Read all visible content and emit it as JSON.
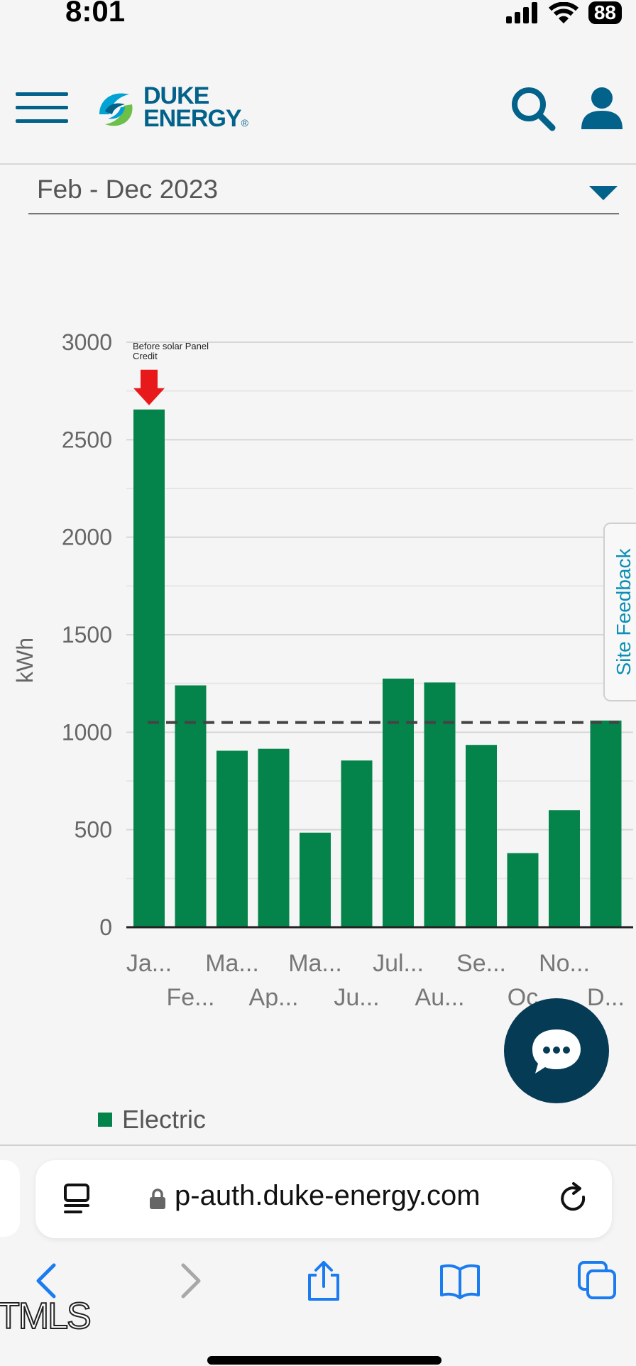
{
  "status_bar": {
    "time": "8:01",
    "battery": "88"
  },
  "header": {
    "logo_line1": "DUKE",
    "logo_line2": "ENERGY",
    "logo_mark": "®"
  },
  "date_select": {
    "value": "Feb - Dec 2023"
  },
  "chart_data": {
    "type": "bar",
    "ylabel": "kWh",
    "ylim": [
      0,
      3000
    ],
    "y_ticks": [
      0,
      500,
      1000,
      1500,
      2000,
      2500,
      3000
    ],
    "categories": [
      "Ja...",
      "Fe...",
      "Ma...",
      "Ap...",
      "Ma...",
      "Ju...",
      "Jul...",
      "Au...",
      "Se...",
      "Oc",
      "No...",
      "D..."
    ],
    "series": [
      {
        "name": "Electric",
        "values": [
          2655,
          1240,
          905,
          915,
          485,
          855,
          1275,
          1255,
          935,
          380,
          600,
          1060
        ]
      }
    ],
    "average_line": 1050,
    "annotation": {
      "line1": "Before solar Panel",
      "line2": "Credit"
    },
    "colors": {
      "bar": "#04834b",
      "arrow": "#e8191b",
      "average": "#444444"
    },
    "grid": true,
    "legend": "bottom-left"
  },
  "site_feedback": {
    "label": "Site Feedback"
  },
  "legend": {
    "label": "Electric"
  },
  "browser": {
    "url": "p-auth.duke-energy.com"
  },
  "watermark": "TMLS"
}
